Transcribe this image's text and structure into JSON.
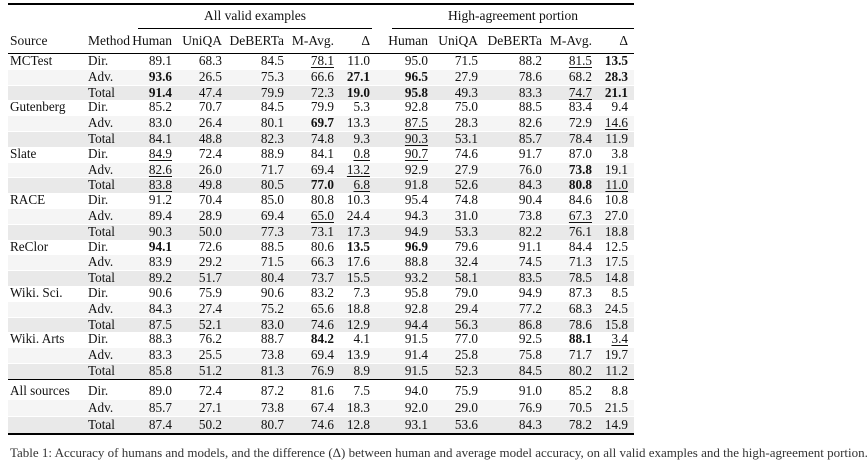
{
  "colors": {
    "rule": "#000000",
    "text": "#111111",
    "row_adv_bg": "#f5f5f5",
    "row_total_bg": "#e9e9e9",
    "background": "#ffffff"
  },
  "table": {
    "group_headers": [
      {
        "label": "All valid examples"
      },
      {
        "label": "High-agreement portion"
      }
    ],
    "columns": [
      "Source",
      "Method",
      "Human",
      "UniQA",
      "DeBERTa",
      "M-Avg.",
      "Δ",
      "Human",
      "UniQA",
      "DeBERTa",
      "M-Avg.",
      "Δ"
    ],
    "legend": {
      "bold_means": "bold value",
      "underline_means": "underlined value"
    },
    "groups": [
      {
        "source": "MCTest",
        "separator": false,
        "rows": [
          {
            "method": "Dir.",
            "cells": [
              "89.1",
              "68.3",
              "84.5",
              "u:78.1",
              "11.0",
              "95.0",
              "71.5",
              "88.2",
              "u:81.5",
              "b:13.5"
            ]
          },
          {
            "method": "Adv.",
            "cells": [
              "b:93.6",
              "26.5",
              "75.3",
              "66.6",
              "b:27.1",
              "b:96.5",
              "27.9",
              "78.6",
              "68.2",
              "b:28.3"
            ]
          },
          {
            "method": "Total",
            "cells": [
              "b:91.4",
              "47.4",
              "79.9",
              "72.3",
              "b:19.0",
              "b:95.8",
              "49.3",
              "83.3",
              "u:74.7",
              "b:21.1"
            ]
          }
        ]
      },
      {
        "source": "Gutenberg",
        "separator": false,
        "rows": [
          {
            "method": "Dir.",
            "cells": [
              "85.2",
              "70.7",
              "84.5",
              "79.9",
              "5.3",
              "92.8",
              "75.0",
              "88.5",
              "83.4",
              "9.4"
            ]
          },
          {
            "method": "Adv.",
            "cells": [
              "83.0",
              "26.4",
              "80.1",
              "b:69.7",
              "13.3",
              "u:87.5",
              "28.3",
              "82.6",
              "72.9",
              "u:14.6"
            ]
          },
          {
            "method": "Total",
            "cells": [
              "84.1",
              "48.8",
              "82.3",
              "74.8",
              "9.3",
              "u:90.3",
              "53.1",
              "85.7",
              "78.4",
              "11.9"
            ]
          }
        ]
      },
      {
        "source": "Slate",
        "separator": false,
        "rows": [
          {
            "method": "Dir.",
            "cells": [
              "u:84.9",
              "72.4",
              "88.9",
              "84.1",
              "u:0.8",
              "u:90.7",
              "74.6",
              "91.7",
              "87.0",
              "3.8"
            ]
          },
          {
            "method": "Adv.",
            "cells": [
              "u:82.6",
              "26.0",
              "71.7",
              "69.4",
              "u:13.2",
              "92.9",
              "27.9",
              "76.0",
              "b:73.8",
              "19.1"
            ]
          },
          {
            "method": "Total",
            "cells": [
              "u:83.8",
              "49.8",
              "80.5",
              "b:77.0",
              "u:6.8",
              "91.8",
              "52.6",
              "84.3",
              "b:80.8",
              "u:11.0"
            ]
          }
        ]
      },
      {
        "source": "RACE",
        "separator": false,
        "rows": [
          {
            "method": "Dir.",
            "cells": [
              "91.2",
              "70.4",
              "85.0",
              "80.8",
              "10.3",
              "95.4",
              "74.8",
              "90.4",
              "84.6",
              "10.8"
            ]
          },
          {
            "method": "Adv.",
            "cells": [
              "89.4",
              "28.9",
              "69.4",
              "u:65.0",
              "24.4",
              "94.3",
              "31.0",
              "73.8",
              "u:67.3",
              "27.0"
            ]
          },
          {
            "method": "Total",
            "cells": [
              "90.3",
              "50.0",
              "77.3",
              "73.1",
              "17.3",
              "94.9",
              "53.3",
              "82.2",
              "76.1",
              "18.8"
            ]
          }
        ]
      },
      {
        "source": "ReClor",
        "separator": false,
        "rows": [
          {
            "method": "Dir.",
            "cells": [
              "b:94.1",
              "72.6",
              "88.5",
              "80.6",
              "b:13.5",
              "b:96.9",
              "79.6",
              "91.1",
              "84.4",
              "12.5"
            ]
          },
          {
            "method": "Adv.",
            "cells": [
              "83.9",
              "29.2",
              "71.5",
              "66.3",
              "17.6",
              "88.8",
              "32.4",
              "74.5",
              "71.3",
              "17.5"
            ]
          },
          {
            "method": "Total",
            "cells": [
              "89.2",
              "51.7",
              "80.4",
              "73.7",
              "15.5",
              "93.2",
              "58.1",
              "83.5",
              "78.5",
              "14.8"
            ]
          }
        ]
      },
      {
        "source": "Wiki. Sci.",
        "separator": false,
        "rows": [
          {
            "method": "Dir.",
            "cells": [
              "90.6",
              "75.9",
              "90.6",
              "83.2",
              "7.3",
              "95.8",
              "79.0",
              "94.9",
              "87.3",
              "8.5"
            ]
          },
          {
            "method": "Adv.",
            "cells": [
              "84.3",
              "27.4",
              "75.2",
              "65.6",
              "18.8",
              "92.8",
              "29.4",
              "77.2",
              "68.3",
              "24.5"
            ]
          },
          {
            "method": "Total",
            "cells": [
              "87.5",
              "52.1",
              "83.0",
              "74.6",
              "12.9",
              "94.4",
              "56.3",
              "86.8",
              "78.6",
              "15.8"
            ]
          }
        ]
      },
      {
        "source": "Wiki. Arts",
        "separator": false,
        "rows": [
          {
            "method": "Dir.",
            "cells": [
              "88.3",
              "76.2",
              "88.7",
              "b:84.2",
              "4.1",
              "91.5",
              "77.0",
              "92.5",
              "b:88.1",
              "u:3.4"
            ]
          },
          {
            "method": "Adv.",
            "cells": [
              "83.3",
              "25.5",
              "73.8",
              "69.4",
              "13.9",
              "91.4",
              "25.8",
              "75.8",
              "71.7",
              "19.7"
            ]
          },
          {
            "method": "Total",
            "cells": [
              "85.8",
              "51.2",
              "81.3",
              "76.9",
              "8.9",
              "91.5",
              "52.3",
              "84.5",
              "80.2",
              "11.2"
            ]
          }
        ]
      },
      {
        "source": "All sources",
        "separator": true,
        "rows": [
          {
            "method": "Dir.",
            "cells": [
              "89.0",
              "72.4",
              "87.2",
              "81.6",
              "7.5",
              "94.0",
              "75.9",
              "91.0",
              "85.2",
              "8.8"
            ]
          },
          {
            "method": "Adv.",
            "cells": [
              "85.7",
              "27.1",
              "73.8",
              "67.4",
              "18.3",
              "92.0",
              "29.0",
              "76.9",
              "70.5",
              "21.5"
            ]
          },
          {
            "method": "Total",
            "cells": [
              "87.4",
              "50.2",
              "80.7",
              "74.6",
              "12.8",
              "93.1",
              "53.6",
              "84.3",
              "78.2",
              "14.9"
            ]
          }
        ]
      }
    ]
  },
  "caption": {
    "text": "Table 1: Accuracy of humans and models, and the difference (Δ) between human and average model accuracy, on all valid examples and the high-agreement portion."
  }
}
